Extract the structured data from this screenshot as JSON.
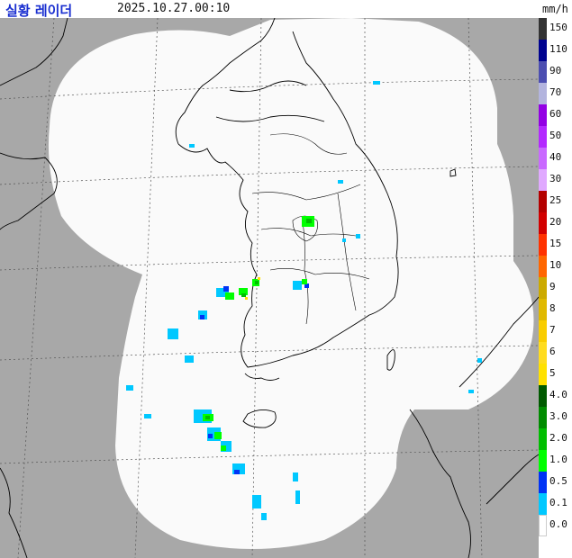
{
  "header": {
    "title": "실황 레이더",
    "timestamp": "2025.10.27.00:10",
    "unit": "mm/h"
  },
  "legend": {
    "items": [
      {
        "label": "150",
        "color": "#333333"
      },
      {
        "label": "110",
        "color": "#000390"
      },
      {
        "label": "90",
        "color": "#4c4eb1"
      },
      {
        "label": "70",
        "color": "#b3b4de"
      },
      {
        "label": "60",
        "color": "#9300e4"
      },
      {
        "label": "50",
        "color": "#b329ff"
      },
      {
        "label": "40",
        "color": "#c969ff"
      },
      {
        "label": "30",
        "color": "#e0a9ff"
      },
      {
        "label": "25",
        "color": "#b40000"
      },
      {
        "label": "20",
        "color": "#d20000"
      },
      {
        "label": "15",
        "color": "#ff3200"
      },
      {
        "label": "10",
        "color": "#ff6600"
      },
      {
        "label": "9",
        "color": "#ccaa00"
      },
      {
        "label": "8",
        "color": "#e0b900"
      },
      {
        "label": "7",
        "color": "#f9cd00"
      },
      {
        "label": "6",
        "color": "#ffdc1f"
      },
      {
        "label": "5",
        "color": "#ffe100"
      },
      {
        "label": "4.0",
        "color": "#005a00"
      },
      {
        "label": "3.0",
        "color": "#008c00"
      },
      {
        "label": "2.0",
        "color": "#00be00"
      },
      {
        "label": "1.0",
        "color": "#00ff00"
      },
      {
        "label": "0.5",
        "color": "#0033f5"
      },
      {
        "label": "0.1",
        "color": "#00c8ff"
      },
      {
        "label": "0.0",
        "color": "#ffffff"
      }
    ]
  },
  "map": {
    "colors": {
      "outside_coverage": "#a8a8a8",
      "coverage": "#fafafa",
      "borders": "#000000",
      "grid": "#555555"
    }
  }
}
